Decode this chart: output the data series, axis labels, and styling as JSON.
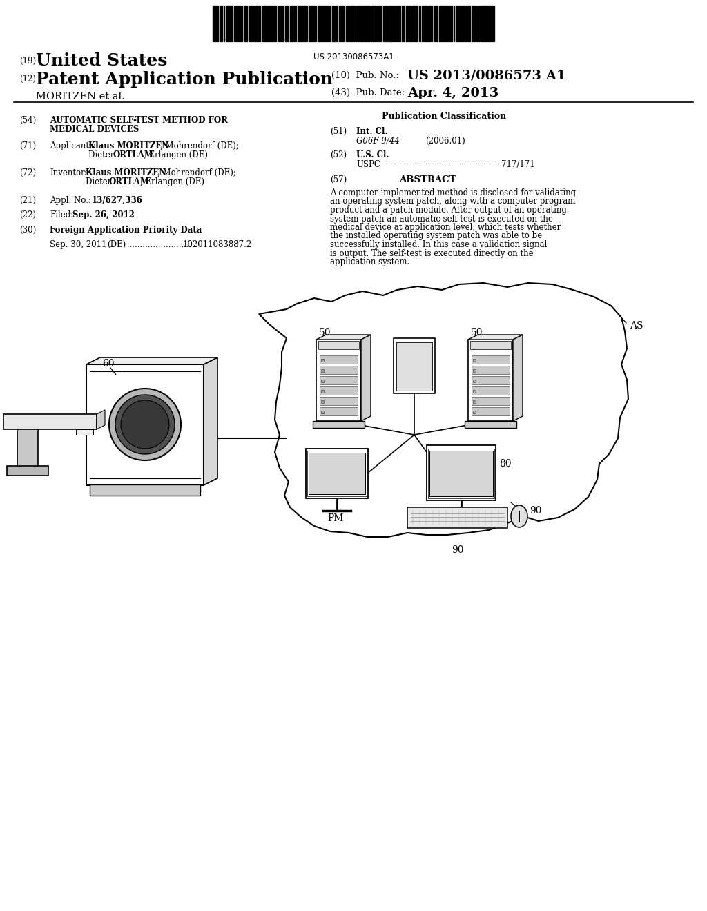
{
  "background_color": "#ffffff",
  "barcode_text": "US 20130086573A1",
  "header": {
    "line1_num": "(19)",
    "line1_text": "United States",
    "line2_num": "(12)",
    "line2_text": "Patent Application Publication",
    "line3_left": "MORITZEN et al.",
    "pub_no_label": "(10)  Pub. No.:",
    "pub_no_val": "US 2013/0086573 A1",
    "pub_date_label": "(43)  Pub. Date:",
    "pub_date_val": "Apr. 4, 2013"
  },
  "abstract": "A computer-implemented method is disclosed for validating an operating system patch, along with a computer program product and a patch module. After output of an operating system patch an automatic self-test is executed on the medical device at application level, which tests whether the installed operating system patch was able to be successfully installed. In this case a validation signal is output. The self-test is executed directly on the application system."
}
